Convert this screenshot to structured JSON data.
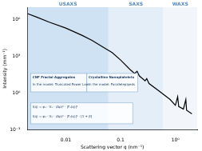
{
  "chart_data": {
    "type": "line",
    "x_label": "Scattering vector q (nm⁻¹)",
    "y_label": "Intensity (mm⁻¹)",
    "log": true,
    "grid": false,
    "color": "#000000",
    "xlim": [
      0.002,
      2.5
    ],
    "ylim": [
      0.001,
      10000000
    ],
    "xticks": [
      0.01,
      0.1,
      {
        "value": 1,
        "label": "10⁰"
      }
    ],
    "yticks": [
      {
        "value": 0.001,
        "label": "10⁻³"
      },
      {
        "value": 1,
        "label": "10⁰"
      },
      {
        "value": 1000,
        "label": "10³"
      },
      {
        "value": 1000000,
        "label": "10⁶"
      }
    ],
    "x": [
      0.002,
      0.003,
      0.005,
      0.01,
      0.02,
      0.03,
      0.05,
      0.07,
      0.1,
      0.15,
      0.18,
      0.2,
      0.22,
      0.28,
      0.3,
      0.33,
      0.5,
      0.8,
      1.0,
      1.1,
      1.15,
      1.4,
      1.55,
      1.6,
      2.0
    ],
    "values": [
      3000000,
      1500000,
      600000,
      200000,
      50000,
      20000,
      5000,
      2000,
      500,
      80,
      40,
      60,
      25,
      10,
      15,
      6,
      1.5,
      0.3,
      0.1,
      0.5,
      0.08,
      0.05,
      0.3,
      0.04,
      0.02
    ],
    "regions": [
      {
        "name": "USAXS",
        "range": [
          0.002,
          0.06
        ],
        "color": "#cfe2f3"
      },
      {
        "name": "SAXS",
        "range": [
          0.06,
          0.6
        ],
        "color": "#e3eef8"
      },
      {
        "name": "WAXS",
        "range": [
          0.6,
          2.5
        ],
        "color": "#f2f6fa"
      }
    ],
    "annotations": [
      {
        "text": "CNF Fractal Aggregates"
      },
      {
        "text": "In the model: Truncated Power Law"
      },
      {
        "text": "Crystalline Nanoplatelets"
      },
      {
        "text": "In the model: Parallelepipeds"
      },
      {
        "text": "I(q) = φ₁ · V₁ · (Δρ)² · |F₁(q)|²"
      },
      {
        "text": "I(q) = φ₂ · V₂ · (Δρ)² · |F₂(q)|² · [1 + β]"
      }
    ]
  }
}
